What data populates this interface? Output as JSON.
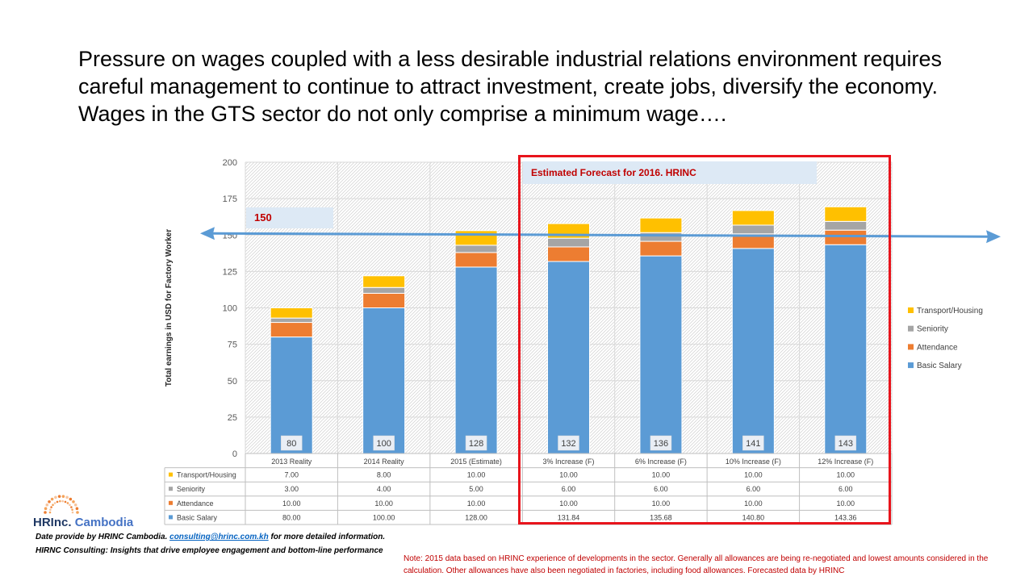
{
  "headline": "Pressure on wages coupled with a less desirable industrial relations environment requires careful management to continue to attract investment, create jobs, diversify the economy.  Wages in the GTS sector do not only comprise a minimum wage….",
  "forecast_label": "Estimated Forecast for 2016. HRINC",
  "reference_label": "150",
  "logo": {
    "brand": "HRInc.",
    "sub": "Cambodia"
  },
  "footer": {
    "line1_prefix": "Date provide  by HRINC Cambodia.  ",
    "email": "consulting@hrinc.com.kh",
    "line1_suffix": "  for more detailed information.",
    "line2": "HIRNC Consulting:  Insights that drive employee engagement and bottom-line performance"
  },
  "note": "Note:  2015 data based on HRINC experience of developments in the sector.  Generally all allowances are being re-negotiated and lowest amounts considered in the calculation.  Other allowances have also been negotiated in factories, including food allowances.  Forecasted data by HRINC",
  "colors": {
    "basic_salary": "#5b9bd5",
    "attendance": "#ed7d31",
    "seniority": "#a5a5a5",
    "transport": "#ffc000",
    "highlight_border": "#e8141c",
    "arrow": "#5b9bd5"
  },
  "chart_data": {
    "type": "bar",
    "stacked": true,
    "ylabel": "Total earnings in USD for Factory Worker",
    "ylim": [
      0,
      200
    ],
    "yticks": [
      0,
      25,
      50,
      75,
      100,
      125,
      150,
      175,
      200
    ],
    "reference_line": 150,
    "categories": [
      "2013 Reality",
      "2014 Reality",
      "2015 (Estimate)",
      "3% Increase (F)",
      "6% Increase (F)",
      "10% Increase (F)",
      "12% Increase (F)"
    ],
    "series": [
      {
        "name": "Basic Salary",
        "color": "#5b9bd5",
        "values": [
          80,
          100,
          128,
          131.84,
          135.68,
          140.8,
          143.36
        ],
        "table": [
          "80.00",
          "100.00",
          "128.00",
          "131.84",
          "135.68",
          "140.80",
          "143.36"
        ]
      },
      {
        "name": "Attendance",
        "color": "#ed7d31",
        "values": [
          10,
          10,
          10,
          10,
          10,
          10,
          10
        ],
        "table": [
          "10.00",
          "10.00",
          "10.00",
          "10.00",
          "10.00",
          "10.00",
          "10.00"
        ]
      },
      {
        "name": "Seniority",
        "color": "#a5a5a5",
        "values": [
          3,
          4,
          5,
          6,
          6,
          6,
          6
        ],
        "table": [
          "3.00",
          "4.00",
          "5.00",
          "6.00",
          "6.00",
          "6.00",
          "6.00"
        ]
      },
      {
        "name": "Transport/Housing",
        "color": "#ffc000",
        "values": [
          7,
          8,
          10,
          10,
          10,
          10,
          10
        ],
        "table": [
          "7.00",
          "8.00",
          "10.00",
          "10.00",
          "10.00",
          "10.00",
          "10.00"
        ]
      }
    ],
    "base_labels": [
      "80",
      "100",
      "128",
      "132",
      "136",
      "141",
      "143"
    ],
    "legend_placement": "right",
    "grid": true
  }
}
